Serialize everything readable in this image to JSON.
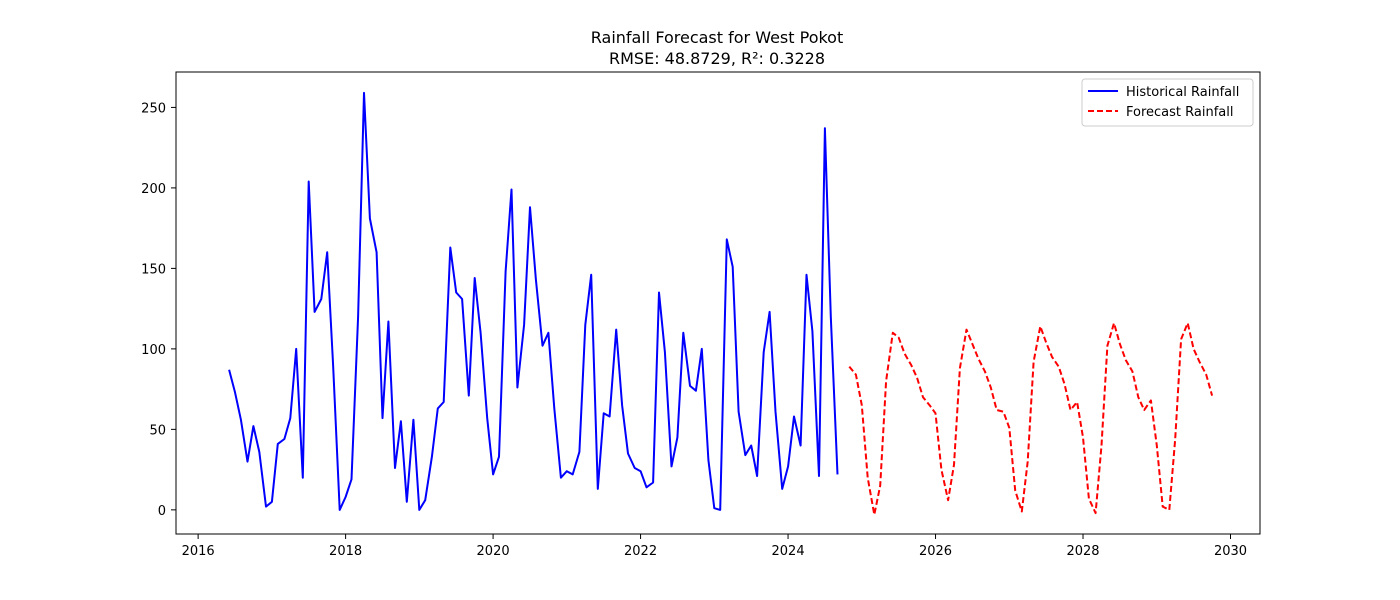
{
  "chart_data": {
    "type": "line",
    "title": "Rainfall Forecast for West Pokot",
    "subtitle": "RMSE: 48.8729, R²: 0.3228",
    "xlabel": "",
    "ylabel": "",
    "xlim": [
      2015.7,
      2030.4
    ],
    "ylim": [
      -15,
      272
    ],
    "xticks": [
      2016,
      2018,
      2020,
      2022,
      2024,
      2026,
      2028,
      2030
    ],
    "yticks": [
      0,
      50,
      100,
      150,
      200,
      250
    ],
    "grid": false,
    "legend_position": "top-right",
    "series": [
      {
        "name": "Historical Rainfall",
        "color": "#0000ff",
        "style": "solid",
        "x": [
          2016.42,
          2016.5,
          2016.58,
          2016.67,
          2016.75,
          2016.83,
          2016.92,
          2017.0,
          2017.08,
          2017.17,
          2017.25,
          2017.33,
          2017.42,
          2017.5,
          2017.58,
          2017.67,
          2017.75,
          2017.83,
          2017.92,
          2018.0,
          2018.08,
          2018.17,
          2018.25,
          2018.33,
          2018.42,
          2018.5,
          2018.58,
          2018.67,
          2018.75,
          2018.83,
          2018.92,
          2019.0,
          2019.08,
          2019.17,
          2019.25,
          2019.33,
          2019.42,
          2019.5,
          2019.58,
          2019.67,
          2019.75,
          2019.83,
          2019.92,
          2020.0,
          2020.08,
          2020.17,
          2020.25,
          2020.33,
          2020.42,
          2020.5,
          2020.58,
          2020.67,
          2020.75,
          2020.83,
          2020.92,
          2021.0,
          2021.08,
          2021.17,
          2021.25,
          2021.33,
          2021.42,
          2021.5,
          2021.58,
          2021.67,
          2021.75,
          2021.83,
          2021.92,
          2022.0,
          2022.08,
          2022.17,
          2022.25,
          2022.33,
          2022.42,
          2022.5,
          2022.58,
          2022.67,
          2022.75,
          2022.83,
          2022.92,
          2023.0,
          2023.08,
          2023.17,
          2023.25,
          2023.33,
          2023.42,
          2023.5,
          2023.58,
          2023.67,
          2023.75,
          2023.83,
          2023.92,
          2024.0,
          2024.08,
          2024.17,
          2024.25,
          2024.33,
          2024.42,
          2024.5,
          2024.58,
          2024.67
        ],
        "y": [
          87,
          73,
          56,
          30,
          52,
          36,
          2,
          5,
          41,
          44,
          57,
          100,
          20,
          204,
          123,
          131,
          160,
          90,
          0,
          8,
          19,
          120,
          259,
          181,
          160,
          57,
          117,
          26,
          55,
          5,
          56,
          0,
          6,
          33,
          63,
          67,
          163,
          135,
          131,
          71,
          144,
          110,
          57,
          22,
          33,
          148,
          199,
          76,
          115,
          188,
          143,
          102,
          110,
          63,
          20,
          24,
          22,
          36,
          115,
          146,
          13,
          60,
          58,
          112,
          65,
          35,
          26,
          24,
          14,
          17,
          135,
          98,
          27,
          45,
          110,
          77,
          74,
          100,
          31,
          1,
          0,
          168,
          151,
          61,
          34,
          40,
          21,
          98,
          123,
          61,
          13,
          27,
          58,
          40,
          146,
          111,
          21,
          237,
          120,
          22
        ]
      },
      {
        "name": "Forecast Rainfall",
        "color": "#ff0000",
        "style": "dashed",
        "x": [
          2024.83,
          2024.92,
          2025.0,
          2025.08,
          2025.17,
          2025.25,
          2025.33,
          2025.42,
          2025.5,
          2025.58,
          2025.67,
          2025.75,
          2025.83,
          2025.92,
          2026.0,
          2026.08,
          2026.17,
          2026.25,
          2026.33,
          2026.42,
          2026.5,
          2026.58,
          2026.67,
          2026.75,
          2026.83,
          2026.92,
          2027.0,
          2027.08,
          2027.17,
          2027.25,
          2027.33,
          2027.42,
          2027.5,
          2027.58,
          2027.67,
          2027.75,
          2027.83,
          2027.92,
          2028.0,
          2028.08,
          2028.17,
          2028.25,
          2028.33,
          2028.42,
          2028.5,
          2028.58,
          2028.67,
          2028.75,
          2028.83,
          2028.92,
          2029.0,
          2029.08,
          2029.17,
          2029.25,
          2029.33,
          2029.42,
          2029.5,
          2029.58,
          2029.67,
          2029.75
        ],
        "y": [
          89,
          84,
          65,
          20,
          -3,
          15,
          80,
          110,
          107,
          97,
          90,
          82,
          70,
          65,
          60,
          25,
          6,
          28,
          88,
          112,
          103,
          94,
          86,
          76,
          62,
          61,
          51,
          12,
          -1,
          30,
          92,
          114,
          104,
          95,
          89,
          78,
          62,
          67,
          45,
          7,
          -2,
          40,
          102,
          116,
          103,
          93,
          86,
          70,
          62,
          68,
          40,
          2,
          0,
          44,
          106,
          116,
          100,
          92,
          84,
          71
        ]
      }
    ]
  }
}
